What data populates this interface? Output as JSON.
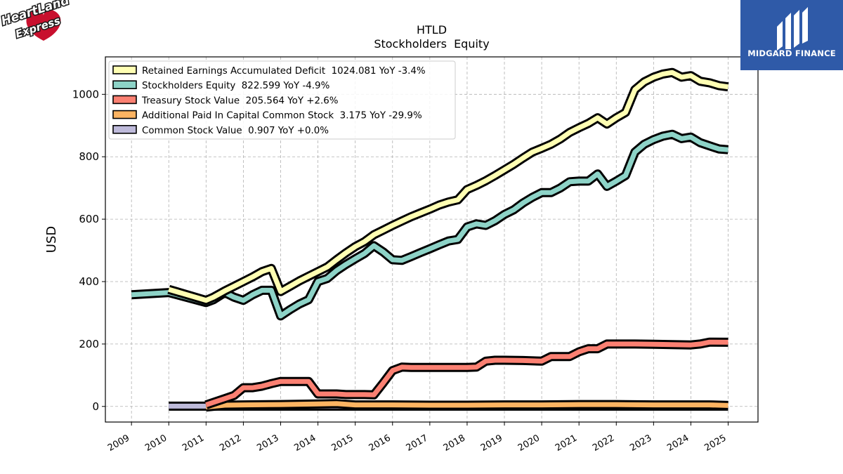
{
  "header": {
    "left_logo_text": "HeartLand Express",
    "right_logo_text": "MIDGARD FINANCE",
    "right_logo_bg": "#2f5aa8"
  },
  "chart_data": {
    "type": "line",
    "title": "HTLD",
    "subtitle": "Stockholders  Equity",
    "xlabel": "",
    "ylabel": "USD",
    "xlim": [
      2008.3,
      2025.8
    ],
    "ylim": [
      -50,
      1120
    ],
    "yticks": [
      0,
      200,
      400,
      600,
      800,
      1000
    ],
    "xticks": [
      "2009",
      "2010",
      "2011",
      "2012",
      "2013",
      "2014",
      "2015",
      "2016",
      "2017",
      "2018",
      "2019",
      "2020",
      "2021",
      "2022",
      "2023",
      "2024",
      "2025"
    ],
    "grid": true,
    "legend_position": "top-left",
    "series": [
      {
        "name": "Retained Earnings Accumulated Deficit  1024.081 YoY -3.4%",
        "color": "#ffffb3",
        "points": [
          [
            2010.0,
            375
          ],
          [
            2011.0,
            340
          ],
          [
            2011.2,
            350
          ],
          [
            2011.5,
            370
          ],
          [
            2011.75,
            385
          ],
          [
            2012.0,
            400
          ],
          [
            2012.25,
            415
          ],
          [
            2012.5,
            432
          ],
          [
            2012.75,
            442
          ],
          [
            2013.0,
            368
          ],
          [
            2013.25,
            385
          ],
          [
            2013.5,
            402
          ],
          [
            2013.75,
            417
          ],
          [
            2014.0,
            432
          ],
          [
            2014.25,
            447
          ],
          [
            2014.5,
            470
          ],
          [
            2014.75,
            492
          ],
          [
            2015.0,
            512
          ],
          [
            2015.25,
            528
          ],
          [
            2015.5,
            550
          ],
          [
            2015.75,
            565
          ],
          [
            2016.0,
            580
          ],
          [
            2016.25,
            594
          ],
          [
            2016.5,
            608
          ],
          [
            2016.75,
            620
          ],
          [
            2017.0,
            632
          ],
          [
            2017.25,
            645
          ],
          [
            2017.5,
            655
          ],
          [
            2017.75,
            662
          ],
          [
            2018.0,
            695
          ],
          [
            2018.25,
            708
          ],
          [
            2018.5,
            723
          ],
          [
            2018.75,
            740
          ],
          [
            2019.0,
            758
          ],
          [
            2019.25,
            776
          ],
          [
            2019.5,
            796
          ],
          [
            2019.75,
            815
          ],
          [
            2020.0,
            827
          ],
          [
            2020.25,
            840
          ],
          [
            2020.5,
            857
          ],
          [
            2020.75,
            878
          ],
          [
            2021.0,
            893
          ],
          [
            2021.25,
            907
          ],
          [
            2021.5,
            925
          ],
          [
            2021.75,
            905
          ],
          [
            2022.0,
            925
          ],
          [
            2022.25,
            942
          ],
          [
            2022.5,
            1015
          ],
          [
            2022.75,
            1040
          ],
          [
            2023.0,
            1055
          ],
          [
            2023.25,
            1065
          ],
          [
            2023.5,
            1070
          ],
          [
            2023.75,
            1055
          ],
          [
            2024.0,
            1060
          ],
          [
            2024.25,
            1042
          ],
          [
            2024.5,
            1037
          ],
          [
            2024.75,
            1028
          ],
          [
            2025.0,
            1024
          ]
        ]
      },
      {
        "name": "Stockholders Equity  822.599 YoY -4.9%",
        "color": "#8dd3c7",
        "points": [
          [
            2009.0,
            358
          ],
          [
            2010.0,
            365
          ],
          [
            2011.0,
            333
          ],
          [
            2011.2,
            342
          ],
          [
            2011.5,
            365
          ],
          [
            2011.75,
            350
          ],
          [
            2012.0,
            340
          ],
          [
            2012.25,
            358
          ],
          [
            2012.5,
            372
          ],
          [
            2012.75,
            372
          ],
          [
            2013.0,
            290
          ],
          [
            2013.25,
            310
          ],
          [
            2013.5,
            328
          ],
          [
            2013.75,
            342
          ],
          [
            2014.0,
            400
          ],
          [
            2014.25,
            410
          ],
          [
            2014.5,
            435
          ],
          [
            2014.75,
            455
          ],
          [
            2015.0,
            473
          ],
          [
            2015.25,
            490
          ],
          [
            2015.5,
            515
          ],
          [
            2015.75,
            495
          ],
          [
            2016.0,
            470
          ],
          [
            2016.25,
            468
          ],
          [
            2016.5,
            480
          ],
          [
            2016.75,
            493
          ],
          [
            2017.0,
            505
          ],
          [
            2017.25,
            518
          ],
          [
            2017.5,
            530
          ],
          [
            2017.75,
            535
          ],
          [
            2018.0,
            575
          ],
          [
            2018.25,
            585
          ],
          [
            2018.5,
            580
          ],
          [
            2018.75,
            595
          ],
          [
            2019.0,
            615
          ],
          [
            2019.25,
            630
          ],
          [
            2019.5,
            652
          ],
          [
            2019.75,
            670
          ],
          [
            2020.0,
            685
          ],
          [
            2020.25,
            685
          ],
          [
            2020.5,
            700
          ],
          [
            2020.75,
            720
          ],
          [
            2021.0,
            722
          ],
          [
            2021.25,
            722
          ],
          [
            2021.5,
            745
          ],
          [
            2021.75,
            705
          ],
          [
            2022.0,
            722
          ],
          [
            2022.25,
            740
          ],
          [
            2022.5,
            815
          ],
          [
            2022.75,
            840
          ],
          [
            2023.0,
            855
          ],
          [
            2023.25,
            866
          ],
          [
            2023.5,
            872
          ],
          [
            2023.75,
            858
          ],
          [
            2024.0,
            863
          ],
          [
            2024.25,
            845
          ],
          [
            2024.5,
            835
          ],
          [
            2024.75,
            825
          ],
          [
            2025.0,
            822.6
          ]
        ]
      },
      {
        "name": "Treasury Stock Value  205.564 YoY +2.6%",
        "color": "#fb8072",
        "points": [
          [
            2011.0,
            5
          ],
          [
            2011.25,
            15
          ],
          [
            2011.5,
            25
          ],
          [
            2011.75,
            35
          ],
          [
            2012.0,
            60
          ],
          [
            2012.25,
            60
          ],
          [
            2012.5,
            65
          ],
          [
            2012.75,
            73
          ],
          [
            2013.0,
            80
          ],
          [
            2013.5,
            80
          ],
          [
            2013.75,
            80
          ],
          [
            2014.0,
            40
          ],
          [
            2014.25,
            40
          ],
          [
            2014.5,
            40
          ],
          [
            2014.75,
            38
          ],
          [
            2015.0,
            38
          ],
          [
            2015.25,
            38
          ],
          [
            2015.5,
            37
          ],
          [
            2015.75,
            75
          ],
          [
            2016.0,
            115
          ],
          [
            2016.25,
            126
          ],
          [
            2016.5,
            125
          ],
          [
            2017.0,
            125
          ],
          [
            2017.5,
            125
          ],
          [
            2018.0,
            125
          ],
          [
            2018.25,
            126
          ],
          [
            2018.5,
            145
          ],
          [
            2018.75,
            148
          ],
          [
            2019.0,
            148
          ],
          [
            2019.5,
            147
          ],
          [
            2020.0,
            145
          ],
          [
            2020.25,
            160
          ],
          [
            2020.75,
            160
          ],
          [
            2021.0,
            175
          ],
          [
            2021.25,
            185
          ],
          [
            2021.5,
            185
          ],
          [
            2021.75,
            200
          ],
          [
            2022.0,
            200
          ],
          [
            2022.5,
            200
          ],
          [
            2023.0,
            199
          ],
          [
            2023.5,
            198
          ],
          [
            2024.0,
            197
          ],
          [
            2024.25,
            200
          ],
          [
            2024.5,
            206
          ],
          [
            2025.0,
            205.6
          ]
        ]
      },
      {
        "name": "Additional Paid In Capital Common Stock  3.175 YoY -29.9%",
        "color": "#fdb462",
        "points": [
          [
            2011.0,
            -2
          ],
          [
            2011.5,
            4
          ],
          [
            2012.0,
            5
          ],
          [
            2013.0,
            6
          ],
          [
            2014.0,
            8
          ],
          [
            2014.5,
            9
          ],
          [
            2015.0,
            5
          ],
          [
            2016.0,
            5
          ],
          [
            2017.0,
            4
          ],
          [
            2018.0,
            4
          ],
          [
            2019.0,
            5
          ],
          [
            2020.0,
            5
          ],
          [
            2021.0,
            6
          ],
          [
            2022.0,
            6
          ],
          [
            2023.0,
            5
          ],
          [
            2024.0,
            5
          ],
          [
            2024.5,
            5
          ],
          [
            2025.0,
            3.2
          ]
        ]
      },
      {
        "name": "Common Stock Value  0.907 YoY +0.0%",
        "color": "#bebada",
        "points": [
          [
            2010.0,
            0.9
          ],
          [
            2025.0,
            0.9
          ]
        ]
      }
    ]
  }
}
